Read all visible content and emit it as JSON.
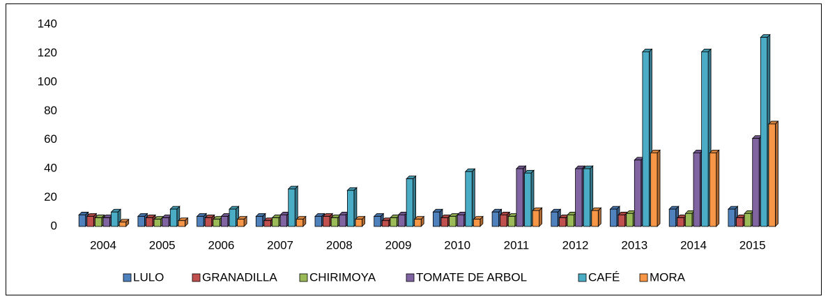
{
  "chart_data": {
    "type": "bar",
    "bar_style": "3d",
    "categories": [
      "2004",
      "2005",
      "2006",
      "2007",
      "2008",
      "2009",
      "2010",
      "2011",
      "2012",
      "2013",
      "2014",
      "2015"
    ],
    "series": [
      {
        "name": "LULO",
        "color": "#4f81bd",
        "values": [
          8,
          7,
          7,
          7,
          7,
          7,
          10,
          10,
          10,
          12,
          12,
          12
        ]
      },
      {
        "name": "GRANADILLA",
        "color": "#c0504d",
        "values": [
          7,
          6,
          6,
          4,
          7,
          4,
          6,
          8,
          6,
          8,
          6,
          6
        ]
      },
      {
        "name": "CHIRIMOYA",
        "color": "#9bbb59",
        "values": [
          6,
          5,
          5,
          6,
          6,
          6,
          7,
          7,
          8,
          9,
          9,
          9
        ]
      },
      {
        "name": "TOMATE DE ARBOL",
        "color": "#8064a2",
        "values": [
          6,
          6,
          7,
          8,
          8,
          8,
          8,
          40,
          40,
          46,
          51,
          61
        ]
      },
      {
        "name": "CAFÉ",
        "color": "#4bacc6",
        "values": [
          10,
          12,
          12,
          26,
          25,
          33,
          38,
          37,
          40,
          121,
          121,
          131
        ]
      },
      {
        "name": "MORA",
        "color": "#f79646",
        "values": [
          3,
          4,
          5,
          5,
          5,
          5,
          5,
          11,
          11,
          51,
          51,
          71
        ]
      }
    ],
    "ylim": [
      0,
      140
    ],
    "yticks": [
      0,
      20,
      40,
      60,
      80,
      100,
      120,
      140
    ],
    "grid": false,
    "legend": "bottom"
  }
}
